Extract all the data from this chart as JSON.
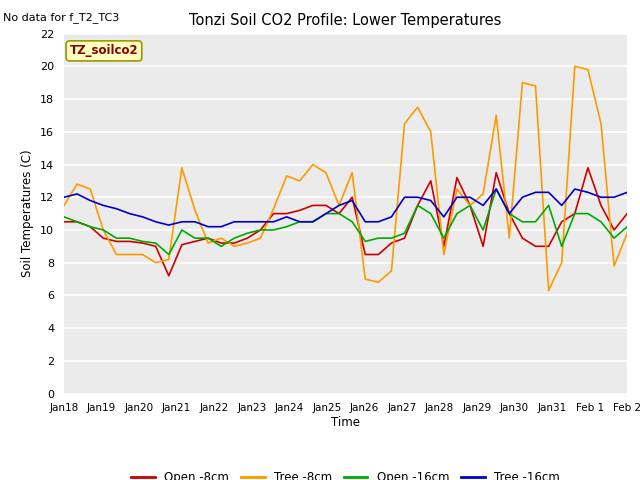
{
  "title": "Tonzi Soil CO2 Profile: Lower Temperatures",
  "no_data_text": "No data for f_T2_TC3",
  "subtitle_box": "TZ_soilco2",
  "xlabel": "Time",
  "ylabel": "Soil Temperatures (C)",
  "ylim": [
    0,
    22
  ],
  "yticks": [
    0,
    2,
    4,
    6,
    8,
    10,
    12,
    14,
    16,
    18,
    20,
    22
  ],
  "x_labels": [
    "Jan 18",
    "Jan 19",
    "Jan 20",
    "Jan 21",
    "Jan 22",
    "Jan 23",
    "Jan 24",
    "Jan 25",
    "Jan 26",
    "Jan 27",
    "Jan 28",
    "Jan 29",
    "Jan 30",
    "Jan 31",
    "Feb 1",
    "Feb 2"
  ],
  "fig_bg": "#ffffff",
  "plot_bg_color": "#ebebeb",
  "open_8cm": [
    10.5,
    10.5,
    10.2,
    9.5,
    9.3,
    9.3,
    9.2,
    9.0,
    7.2,
    9.1,
    9.3,
    9.5,
    9.2,
    9.2,
    9.5,
    10.0,
    11.0,
    11.0,
    11.2,
    11.5,
    11.5,
    11.0,
    12.0,
    8.5,
    8.5,
    9.2,
    9.5,
    11.5,
    13.0,
    9.0,
    13.2,
    11.5,
    9.0,
    13.5,
    11.0,
    9.5,
    9.0,
    9.0,
    10.5,
    11.0,
    13.8,
    11.5,
    10.0,
    11.0
  ],
  "tree_8cm": [
    11.5,
    12.8,
    12.5,
    10.0,
    8.5,
    8.5,
    8.5,
    8.0,
    8.2,
    13.8,
    11.2,
    9.2,
    9.5,
    9.0,
    9.2,
    9.5,
    11.3,
    13.3,
    13.0,
    14.0,
    13.5,
    11.5,
    13.5,
    7.0,
    6.8,
    7.5,
    16.5,
    17.5,
    16.0,
    8.5,
    12.5,
    11.5,
    12.2,
    17.0,
    9.5,
    19.0,
    18.8,
    6.3,
    8.0,
    20.0,
    19.8,
    16.5,
    7.8,
    9.8
  ],
  "open_16cm": [
    10.8,
    10.5,
    10.2,
    10.0,
    9.5,
    9.5,
    9.3,
    9.2,
    8.5,
    10.0,
    9.5,
    9.5,
    9.0,
    9.5,
    9.8,
    10.0,
    10.0,
    10.2,
    10.5,
    10.5,
    11.0,
    11.0,
    10.5,
    9.3,
    9.5,
    9.5,
    9.8,
    11.5,
    11.0,
    9.5,
    11.0,
    11.5,
    10.0,
    12.5,
    11.0,
    10.5,
    10.5,
    11.5,
    9.0,
    11.0,
    11.0,
    10.5,
    9.5,
    10.2
  ],
  "tree_16cm": [
    12.0,
    12.2,
    11.8,
    11.5,
    11.3,
    11.0,
    10.8,
    10.5,
    10.3,
    10.5,
    10.5,
    10.2,
    10.2,
    10.5,
    10.5,
    10.5,
    10.5,
    10.8,
    10.5,
    10.5,
    11.0,
    11.5,
    11.8,
    10.5,
    10.5,
    10.8,
    12.0,
    12.0,
    11.8,
    10.8,
    12.0,
    12.0,
    11.5,
    12.5,
    11.0,
    12.0,
    12.3,
    12.3,
    11.5,
    12.5,
    12.3,
    12.0,
    12.0,
    12.3
  ],
  "line_colors": {
    "open_8cm": "#cc0000",
    "tree_8cm": "#ff9900",
    "open_16cm": "#00aa00",
    "tree_16cm": "#0000cc"
  },
  "legend_labels": [
    "Open -8cm",
    "Tree -8cm",
    "Open -16cm",
    "Tree -16cm"
  ]
}
